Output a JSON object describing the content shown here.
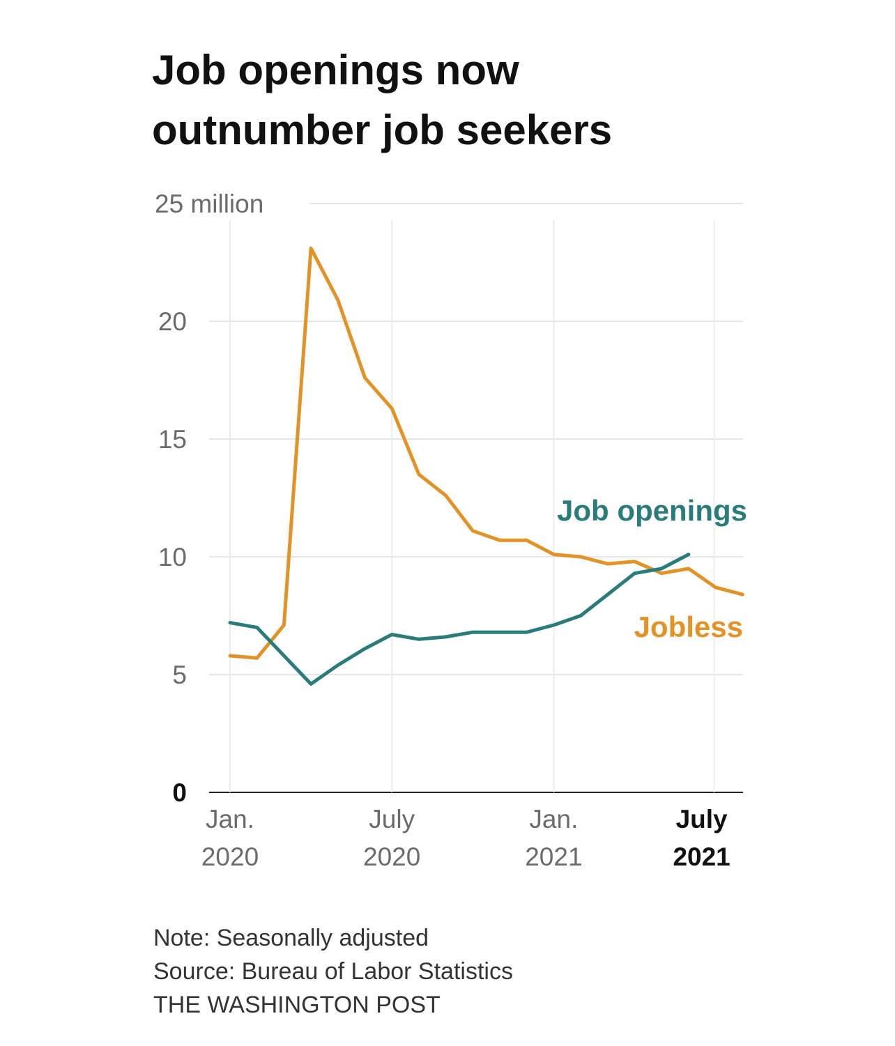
{
  "title_lines": [
    "Job openings now",
    "outnumber job seekers"
  ],
  "notes": {
    "note": "Note: Seasonally adjusted",
    "source": "Source: Bureau of Labor Statistics",
    "credit": "THE WASHINGTON POST"
  },
  "chart_data": {
    "type": "line",
    "title": "Job openings now outnumber job seekers",
    "ylim": [
      0,
      25
    ],
    "y_unit_label": "25 million",
    "y_ticks": [
      {
        "value": 25,
        "label": "25 million"
      },
      {
        "value": 20,
        "label": "20"
      },
      {
        "value": 15,
        "label": "15"
      },
      {
        "value": 10,
        "label": "10"
      },
      {
        "value": 5,
        "label": "5"
      },
      {
        "value": 0,
        "label": "0"
      }
    ],
    "x_range": [
      0,
      19.2
    ],
    "x_ticks": [
      {
        "value": 0,
        "line1": "Jan.",
        "line2": "2020",
        "bold": false
      },
      {
        "value": 6,
        "line1": "July",
        "line2": "2020",
        "bold": false
      },
      {
        "value": 12,
        "line1": "Jan.",
        "line2": "2021",
        "bold": false
      },
      {
        "value": 18,
        "line1": "July",
        "line2": "2021",
        "bold": true
      }
    ],
    "x_months": [
      "Jan 2020",
      "Feb 2020",
      "Mar 2020",
      "Apr 2020",
      "May 2020",
      "Jun 2020",
      "Jul 2020",
      "Aug 2020",
      "Sep 2020",
      "Oct 2020",
      "Nov 2020",
      "Dec 2020",
      "Jan 2021",
      "Feb 2021",
      "Mar 2021",
      "Apr 2021",
      "May 2021",
      "Jun 2021",
      "Jul 2021",
      "Aug 2021"
    ],
    "series": [
      {
        "name": "Job openings",
        "label": "Job openings",
        "color": "#2a7b7b",
        "x": [
          0,
          1,
          2,
          3,
          4,
          5,
          6,
          7,
          8,
          9,
          10,
          11,
          12,
          13,
          14,
          15,
          16,
          17
        ],
        "values": [
          7.2,
          7.0,
          5.8,
          4.6,
          5.4,
          6.1,
          6.7,
          6.5,
          6.6,
          6.8,
          6.8,
          6.8,
          7.1,
          7.5,
          8.4,
          9.3,
          9.5,
          10.1
        ]
      },
      {
        "name": "Jobless",
        "label": "Jobless",
        "color": "#e39226",
        "x": [
          0,
          1,
          2,
          3,
          4,
          5,
          6,
          7,
          8,
          9,
          10,
          11,
          12,
          13,
          14,
          15,
          16,
          17,
          18,
          19
        ],
        "values": [
          5.8,
          5.7,
          7.1,
          23.1,
          20.9,
          17.6,
          16.3,
          13.5,
          12.6,
          11.1,
          10.7,
          10.7,
          10.1,
          10.0,
          9.7,
          9.8,
          9.3,
          9.5,
          8.7,
          8.4
        ]
      }
    ]
  }
}
